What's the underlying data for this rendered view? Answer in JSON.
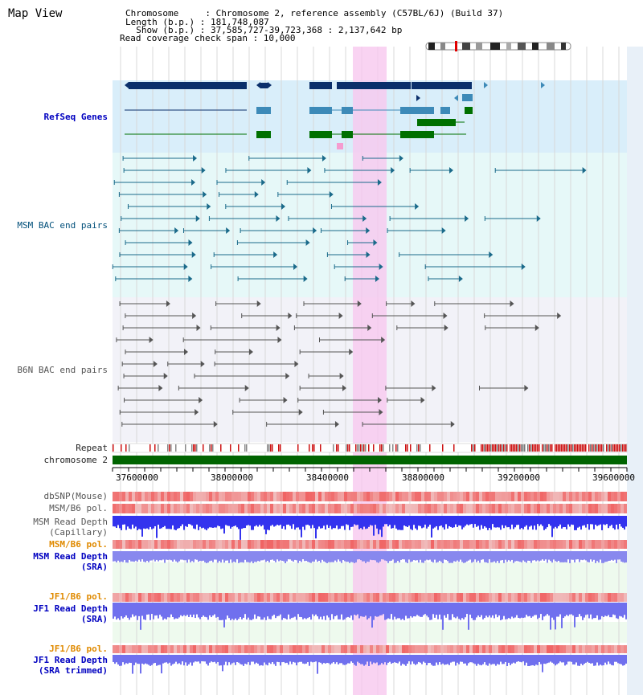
{
  "title": "Map View",
  "info": {
    "chromosome": "Chromosome     : Chromosome 2, reference assembly (C57BL/6J) (Build 37)",
    "length": "Length (b.p.) : 181,748,087",
    "show": "  Show (b.p.) : 37,585,727-39,723,368 : 2,137,642 bp",
    "coverage": "Read coverage check span : 10,000"
  },
  "tracks": {
    "refseq": "RefSeq Genes",
    "msm_bac": "MSM BAC end pairs",
    "b6n_bac": "B6N BAC end pairs",
    "repeat": "Repeat",
    "chromosome": "chromosome 2",
    "dbsnp": "dbSNP(Mouse)",
    "msm_b6_pol_1": "MSM/B6 pol.",
    "msm_depth_cap_1": "MSM Read Depth",
    "msm_depth_cap_2": "(Capillary)",
    "msm_b6_pol_2": "MSM/B6 pol.",
    "msm_depth_sra_1": "MSM Read Depth",
    "msm_depth_sra_2": "(SRA)",
    "jf1_pol_1": "JF1/B6 pol.",
    "jf1_depth_sra_1": "JF1 Read Depth",
    "jf1_depth_sra_2": "(SRA)",
    "jf1_pol_2": "JF1/B6 pol.",
    "jf1_depth_trim_1": "JF1 Read Depth",
    "jf1_depth_trim_2": "(SRA trimmed)"
  },
  "axis_ticks": [
    "37600000",
    "38000000",
    "38400000",
    "38800000",
    "39200000",
    "39600000"
  ],
  "colors": {
    "refseq_bg": "#d9eefa",
    "bac_bg": "#e6f8f8",
    "gray_bg": "#f0f0f6",
    "highlight": "#f7c8ef",
    "gene_navy": "#0b2f6b",
    "gene_blue": "#3d8ab8",
    "gene_green": "#007000",
    "msm_color": "#1a6a8a",
    "b6n_color": "#555555",
    "depth_blue": "#3333ee",
    "depth_light": "#7777f0",
    "polymorph_red": "#e33333"
  }
}
